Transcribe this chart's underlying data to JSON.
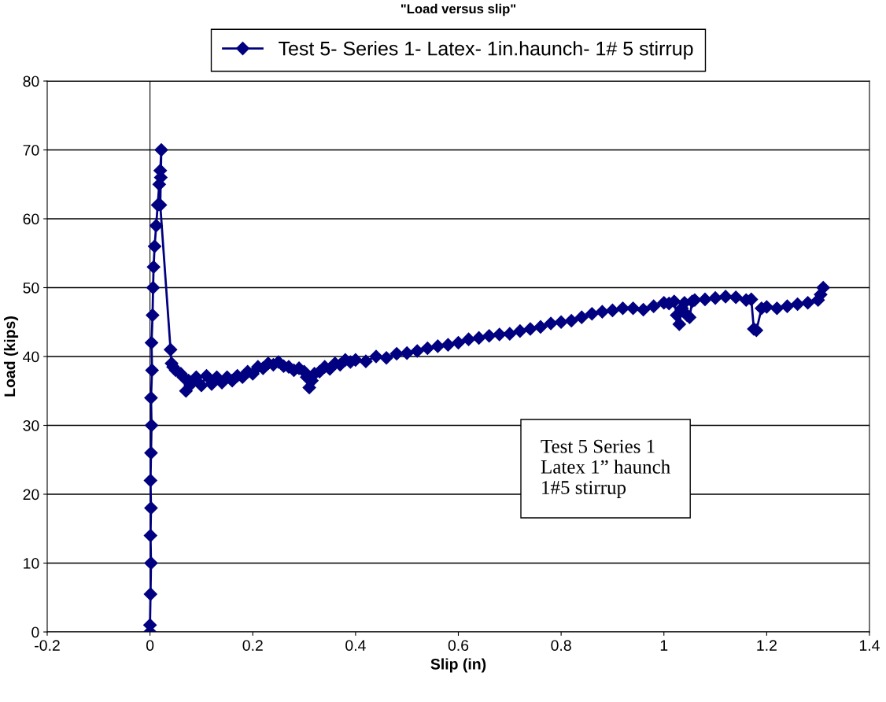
{
  "chart_data": {
    "type": "line",
    "title": "\"Load versus slip\"",
    "xlabel": "Slip (in)",
    "ylabel": "Load (kips)",
    "xlim": [
      -0.2,
      1.4
    ],
    "xticks": [
      -0.2,
      0,
      0.2,
      0.4,
      0.6,
      0.8,
      1,
      1.2,
      1.4
    ],
    "ylim": [
      0,
      80
    ],
    "yticks": [
      0,
      10,
      20,
      30,
      40,
      50,
      60,
      70,
      80
    ],
    "grid": "y",
    "legend": "top",
    "marker": "diamond",
    "line_style": "solid",
    "series": [
      {
        "name": "Test 5- Series 1- Latex- 1in.haunch- 1# 5 stirrup",
        "color": "#000080",
        "x": [
          0,
          0,
          0.001,
          0.002,
          0.001,
          0.002,
          0.001,
          0.002,
          0.003,
          0.002,
          0.004,
          0.003,
          0.005,
          0.006,
          0.007,
          0.009,
          0.012,
          0.015,
          0.018,
          0.02,
          0.022,
          0.021,
          0.02,
          0.04,
          0.042,
          0.045,
          0.05,
          0.06,
          0.065,
          0.07,
          0.075,
          0.08,
          0.09,
          0.1,
          0.11,
          0.12,
          0.13,
          0.14,
          0.15,
          0.16,
          0.17,
          0.18,
          0.19,
          0.2,
          0.21,
          0.22,
          0.23,
          0.24,
          0.25,
          0.26,
          0.27,
          0.28,
          0.29,
          0.3,
          0.305,
          0.31,
          0.315,
          0.32,
          0.33,
          0.34,
          0.35,
          0.36,
          0.37,
          0.38,
          0.39,
          0.4,
          0.42,
          0.44,
          0.46,
          0.48,
          0.5,
          0.52,
          0.54,
          0.56,
          0.58,
          0.6,
          0.62,
          0.64,
          0.66,
          0.68,
          0.7,
          0.72,
          0.74,
          0.76,
          0.78,
          0.8,
          0.82,
          0.84,
          0.86,
          0.88,
          0.9,
          0.92,
          0.94,
          0.96,
          0.98,
          1.0,
          1.01,
          1.02,
          1.025,
          1.03,
          1.035,
          1.04,
          1.045,
          1.05,
          1.055,
          1.06,
          1.08,
          1.1,
          1.12,
          1.14,
          1.16,
          1.17,
          1.175,
          1.18,
          1.19,
          1.2,
          1.22,
          1.24,
          1.26,
          1.28,
          1.3,
          1.305,
          1.31
        ],
        "values": [
          0,
          1,
          5.5,
          10,
          14,
          18,
          22,
          26,
          30,
          34,
          38,
          42,
          46,
          50,
          53,
          56,
          59,
          62,
          65,
          67,
          70,
          66,
          62,
          41,
          39,
          38.5,
          38,
          37.5,
          37,
          35,
          36.5,
          36,
          37,
          35.8,
          37.2,
          36,
          37,
          36.2,
          37,
          36.5,
          37.2,
          37,
          37.8,
          37.5,
          38.5,
          38.3,
          39,
          38.8,
          39.2,
          38.6,
          38.5,
          38,
          38.3,
          37.8,
          37,
          35.5,
          36.5,
          37.5,
          37.8,
          38.5,
          38.2,
          39,
          38.8,
          39.5,
          39.2,
          39.5,
          39.3,
          40,
          39.8,
          40.4,
          40.5,
          40.8,
          41.2,
          41.5,
          41.7,
          42,
          42.5,
          42.7,
          43,
          43.2,
          43.3,
          43.7,
          44,
          44.3,
          44.8,
          45,
          45.2,
          45.7,
          46.2,
          46.5,
          46.7,
          47,
          47,
          46.8,
          47.3,
          47.8,
          47.7,
          48,
          46,
          44.7,
          47,
          47.8,
          46,
          45.7,
          48,
          48.2,
          48.3,
          48.5,
          48.7,
          48.6,
          48.2,
          48.3,
          44,
          43.8,
          47,
          47.2,
          47,
          47.3,
          47.6,
          47.8,
          48.2,
          49,
          50
        ]
      }
    ],
    "annotations": [
      "Test 5 Series 1\nLatex 1” haunch\n1#5 stirrup"
    ]
  }
}
